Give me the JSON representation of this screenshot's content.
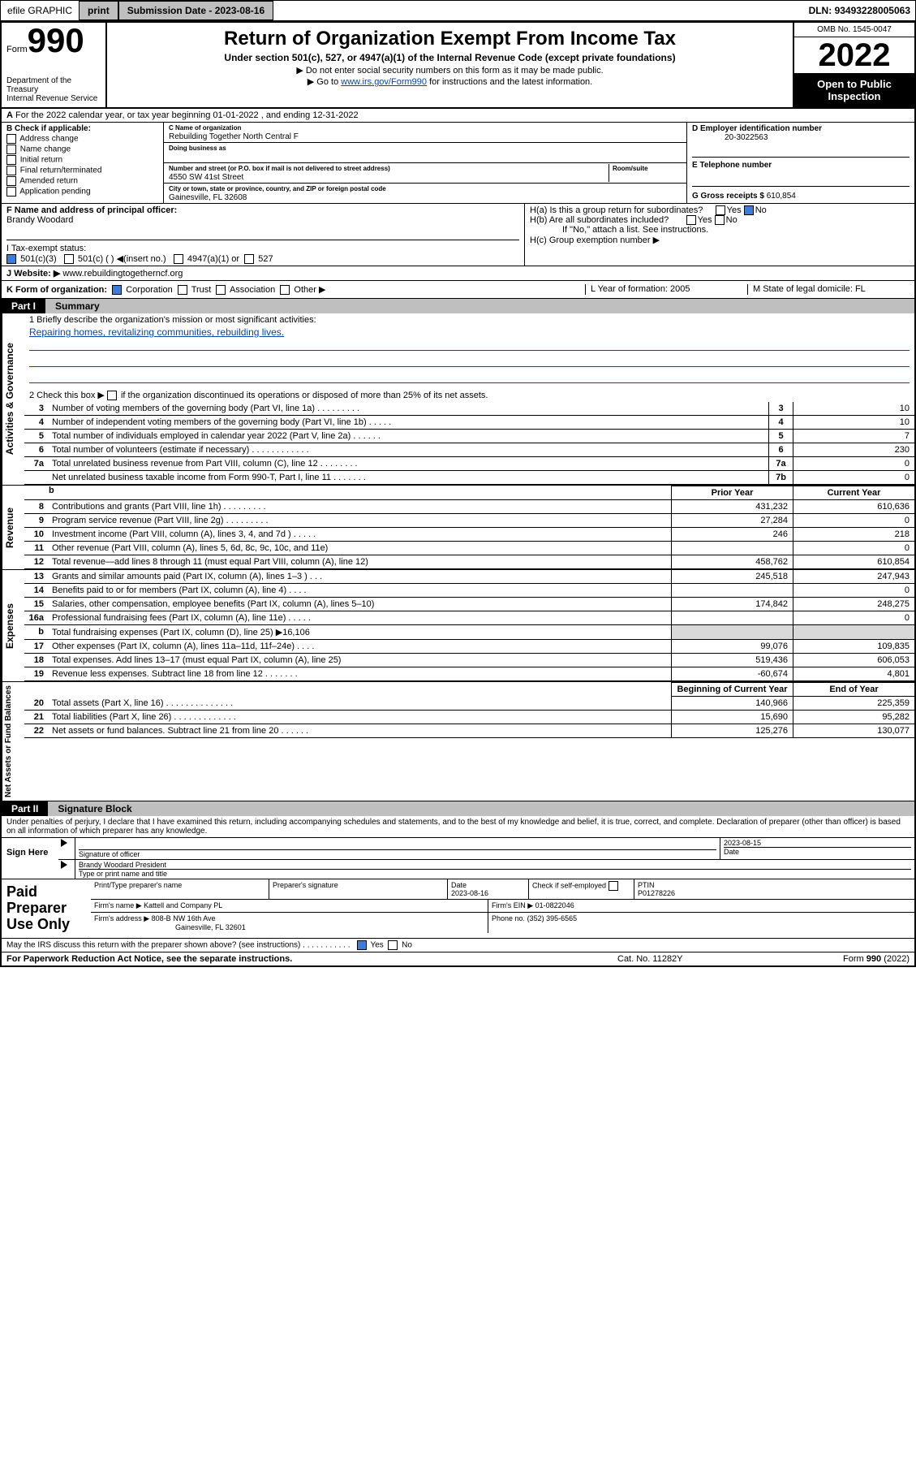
{
  "topbar": {
    "efile": "efile GRAPHIC",
    "print": "print",
    "subdate_lbl": "Submission Date - ",
    "subdate": "2023-08-16",
    "dln_lbl": "DLN: ",
    "dln": "93493228005063"
  },
  "header": {
    "form": "Form",
    "n990": "990",
    "title": "Return of Organization Exempt From Income Tax",
    "subtitle": "Under section 501(c), 527, or 4947(a)(1) of the Internal Revenue Code (except private foundations)",
    "note1": "▶ Do not enter social security numbers on this form as it may be made public.",
    "note2_pre": "▶ Go to ",
    "note2_link": "www.irs.gov/Form990",
    "note2_post": " for instructions and the latest information.",
    "dept": "Department of the Treasury\nInternal Revenue Service",
    "omb": "OMB No. 1545-0047",
    "year": "2022",
    "open": "Open to Public Inspection"
  },
  "lineA": "For the 2022 calendar year, or tax year beginning 01-01-2022      , and ending 12-31-2022",
  "boxB": {
    "hdr": "B Check if applicable:",
    "items": [
      "Address change",
      "Name change",
      "Initial return",
      "Final return/terminated",
      "Amended return",
      "Application pending"
    ]
  },
  "boxC": {
    "lbl": "C Name of organization",
    "name": "Rebuilding Together North Central F",
    "dba_lbl": "Doing business as",
    "addr_lbl": "Number and street (or P.O. box if mail is not delivered to street address)",
    "room": "Room/suite",
    "addr": "4550 SW 41st Street",
    "city_lbl": "City or town, state or province, country, and ZIP or foreign postal code",
    "city": "Gainesville, FL  32608"
  },
  "boxD": {
    "lbl": "D Employer identification number",
    "v": "20-3022563"
  },
  "boxE": {
    "lbl": "E Telephone number",
    "v": ""
  },
  "boxG": {
    "lbl": "G Gross receipts $",
    "v": "610,854"
  },
  "boxF": {
    "lbl": "F  Name and address of principal officer:",
    "v": "Brandy Woodard"
  },
  "boxH": {
    "a": "H(a)  Is this a group return for subordinates?",
    "b": "H(b)  Are all subordinates included?",
    "note": "If \"No,\" attach a list. See instructions.",
    "c": "H(c)  Group exemption number ▶",
    "yes": "Yes",
    "no": "No"
  },
  "taxI": {
    "lbl": "I    Tax-exempt status:",
    "o1": "501(c)(3)",
    "o2": "501(c) (  ) ◀(insert no.)",
    "o3": "4947(a)(1) or",
    "o4": "527"
  },
  "siteJ": {
    "lbl": "J    Website: ▶",
    "v": "www.rebuildingtogetherncf.org"
  },
  "lineK": {
    "lbl": "K Form of organization:",
    "o1": "Corporation",
    "o2": "Trust",
    "o3": "Association",
    "o4": "Other ▶",
    "L": "L Year of formation: 2005",
    "M": "M State of legal domicile: FL"
  },
  "part1": {
    "num": "Part I",
    "title": "Summary"
  },
  "gov": {
    "tab": "Activities & Governance",
    "l1": "1   Briefly describe the organization's mission or most significant activities:",
    "mission": "Repairing homes, revitalizing communities, rebuilding lives.",
    "l2": "2   Check this box ▶    if the organization discontinued its operations or disposed of more than 25% of its net assets.",
    "rows": [
      {
        "n": "3",
        "d": "Number of voting members of the governing body (Part VI, line 1a)  .    .    .    .    .    .    .    .    .",
        "nn": "3",
        "v": "10"
      },
      {
        "n": "4",
        "d": "Number of independent voting members of the governing body (Part VI, line 1b)  .    .    .    .    .",
        "nn": "4",
        "v": "10"
      },
      {
        "n": "5",
        "d": "Total number of individuals employed in calendar year 2022 (Part V, line 2a)  .    .    .    .    .    .",
        "nn": "5",
        "v": "7"
      },
      {
        "n": "6",
        "d": "Total number of volunteers (estimate if necessary)  .    .    .    .    .    .    .    .    .    .    .    .",
        "nn": "6",
        "v": "230"
      },
      {
        "n": "7a",
        "d": "Total unrelated business revenue from Part VIII, column (C), line 12  .    .    .    .    .    .    .    .",
        "nn": "7a",
        "v": "0"
      },
      {
        "n": "",
        "d": "Net unrelated business taxable income from Form 990-T, Part I, line 11  .    .    .    .    .    .    .",
        "nn": "7b",
        "v": "0"
      }
    ]
  },
  "cols": {
    "prior": "Prior Year",
    "curr": "Current Year",
    "beg": "Beginning of Current Year",
    "end": "End of Year"
  },
  "rev": {
    "tab": "Revenue",
    "rows": [
      {
        "n": "8",
        "d": "Contributions and grants (Part VIII, line 1h)  .    .    .    .    .    .    .    .    .",
        "p": "431,232",
        "c": "610,636"
      },
      {
        "n": "9",
        "d": "Program service revenue (Part VIII, line 2g)  .    .    .    .    .    .    .    .    .",
        "p": "27,284",
        "c": "0"
      },
      {
        "n": "10",
        "d": "Investment income (Part VIII, column (A), lines 3, 4, and 7d )  .    .    .    .    .",
        "p": "246",
        "c": "218"
      },
      {
        "n": "11",
        "d": "Other revenue (Part VIII, column (A), lines 5, 6d, 8c, 9c, 10c, and 11e)",
        "p": "",
        "c": "0"
      },
      {
        "n": "12",
        "d": "Total revenue—add lines 8 through 11 (must equal Part VIII, column (A), line 12)",
        "p": "458,762",
        "c": "610,854"
      }
    ]
  },
  "exp": {
    "tab": "Expenses",
    "rows": [
      {
        "n": "13",
        "d": "Grants and similar amounts paid (Part IX, column (A), lines 1–3 )  .    .    .",
        "p": "245,518",
        "c": "247,943"
      },
      {
        "n": "14",
        "d": "Benefits paid to or for members (Part IX, column (A), line 4)  .    .    .    .",
        "p": "",
        "c": "0"
      },
      {
        "n": "15",
        "d": "Salaries, other compensation, employee benefits (Part IX, column (A), lines 5–10)",
        "p": "174,842",
        "c": "248,275"
      },
      {
        "n": "16a",
        "d": "Professional fundraising fees (Part IX, column (A), line 11e)  .    .    .    .    .",
        "p": "",
        "c": "0"
      },
      {
        "n": "b",
        "d": "Total fundraising expenses (Part IX, column (D), line 25) ▶16,106",
        "p": "SHADE",
        "c": "SHADE"
      },
      {
        "n": "17",
        "d": "Other expenses (Part IX, column (A), lines 11a–11d, 11f–24e)  .    .    .    .",
        "p": "99,076",
        "c": "109,835"
      },
      {
        "n": "18",
        "d": "Total expenses. Add lines 13–17 (must equal Part IX, column (A), line 25)",
        "p": "519,436",
        "c": "606,053"
      },
      {
        "n": "19",
        "d": "Revenue less expenses. Subtract line 18 from line 12  .    .    .    .    .    .    .",
        "p": "-60,674",
        "c": "4,801"
      }
    ]
  },
  "net": {
    "tab": "Net Assets or Fund Balances",
    "rows": [
      {
        "n": "20",
        "d": "Total assets (Part X, line 16)  .    .    .    .    .    .    .    .    .    .    .    .    .    .",
        "p": "140,966",
        "c": "225,359"
      },
      {
        "n": "21",
        "d": "Total liabilities (Part X, line 26)  .    .    .    .    .    .    .    .    .    .    .    .    .",
        "p": "15,690",
        "c": "95,282"
      },
      {
        "n": "22",
        "d": "Net assets or fund balances. Subtract line 21 from line 20  .    .    .    .    .    .",
        "p": "125,276",
        "c": "130,077"
      }
    ]
  },
  "part2": {
    "num": "Part II",
    "title": "Signature Block"
  },
  "perjury": "Under penalties of perjury, I declare that I have examined this return, including accompanying schedules and statements, and to the best of my knowledge and belief, it is true, correct, and complete. Declaration of preparer (other than officer) is based on all information of which preparer has any knowledge.",
  "sign": {
    "lbl": "Sign Here",
    "sig": "Signature of officer",
    "date": "Date",
    "datev": "2023-08-15",
    "name": "Brandy Woodard  President",
    "type": "Type or print name and title"
  },
  "prep": {
    "lbl": "Paid Preparer Use Only",
    "h1": "Print/Type preparer's name",
    "h2": "Preparer's signature",
    "h3": "Date",
    "h3v": "2023-08-16",
    "h4": "Check      if self-employed",
    "h5": "PTIN",
    "h5v": "P01278226",
    "firm_lbl": "Firm's name   ▶",
    "firm": "Kattell and Company PL",
    "ein_lbl": "Firm's EIN ▶",
    "ein": "01-0822046",
    "addr_lbl": "Firm's address ▶",
    "addr": "808-B NW 16th Ave",
    "city": "Gainesville, FL  32601",
    "ph_lbl": "Phone no.",
    "ph": "(352) 395-6565"
  },
  "irs": "May the IRS discuss this return with the preparer shown above? (see instructions)  .    .    .    .    .    .    .    .    .    .    .",
  "footer": {
    "pra": "For Paperwork Reduction Act Notice, see the separate instructions.",
    "cat": "Cat. No. 11282Y",
    "form": "Form 990 (2022)"
  }
}
